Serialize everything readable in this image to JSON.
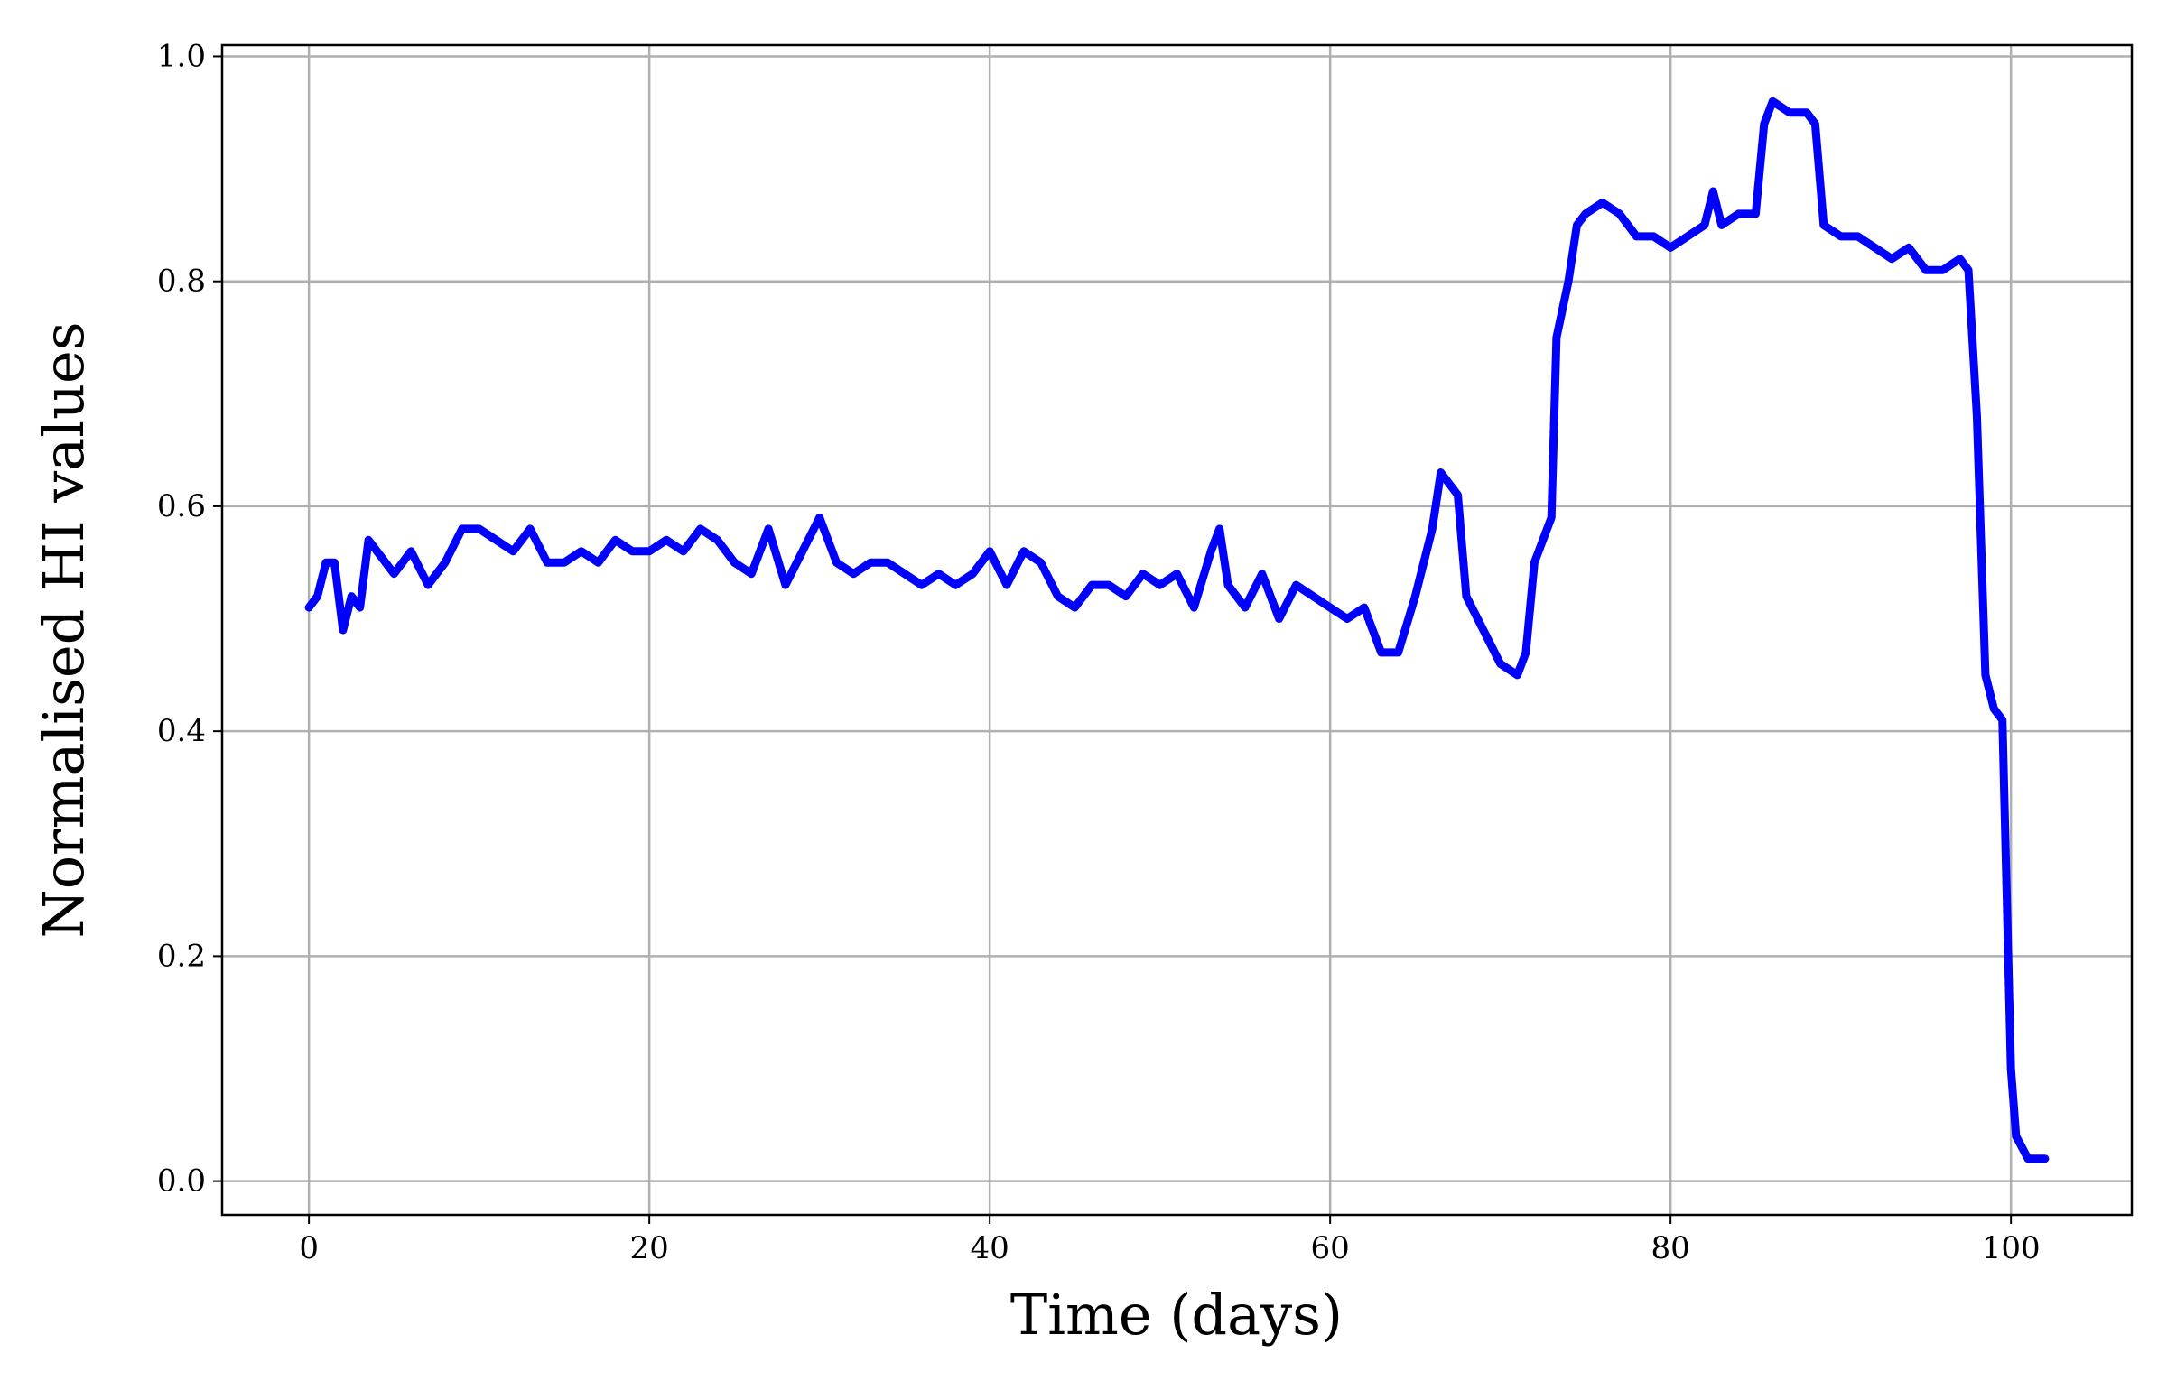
{
  "chart_data": {
    "type": "line",
    "x_label": "Time (days)",
    "y_label": "Normalised HI values",
    "xlim": [
      -5.1,
      107.1
    ],
    "ylim": [
      -0.03,
      1.01
    ],
    "xticks": [
      0,
      20,
      40,
      60,
      80,
      100
    ],
    "yticks": [
      {
        "value": 0,
        "label": "0.0"
      },
      0.2,
      0.4,
      0.6,
      0.8,
      {
        "value": 1,
        "label": "1.0"
      }
    ],
    "grid": true,
    "series": [
      {
        "color": "#0000ff",
        "x": [
          0,
          0.5,
          1,
          1.5,
          2,
          2.5,
          3,
          3.5,
          4,
          5,
          6,
          7,
          8,
          9,
          10,
          11,
          12,
          13,
          14,
          15,
          16,
          17,
          18,
          19,
          20,
          21,
          22,
          23,
          24,
          25,
          26,
          27,
          28,
          29,
          30,
          31,
          32,
          33,
          34,
          35,
          36,
          37,
          38,
          39,
          40,
          41,
          42,
          43,
          44,
          45,
          46,
          47,
          48,
          49,
          50,
          51,
          52,
          53,
          53.5,
          54,
          55,
          56,
          57,
          58,
          59,
          60,
          61,
          62,
          63,
          64,
          65,
          66,
          66.5,
          67.5,
          68,
          69,
          70,
          71,
          71.5,
          72,
          72.5,
          73,
          73.3,
          74,
          74.5,
          75,
          76,
          77,
          78,
          79,
          80,
          81,
          82,
          82.5,
          83,
          84,
          85,
          85.5,
          86,
          87,
          88,
          88.5,
          89,
          90,
          91,
          92,
          93,
          94,
          95,
          96,
          97,
          97.5,
          98,
          98.5,
          99,
          99.5,
          100,
          100.3,
          101,
          102
        ],
        "values": [
          0.51,
          0.52,
          0.55,
          0.55,
          0.49,
          0.52,
          0.51,
          0.57,
          0.56,
          0.54,
          0.56,
          0.53,
          0.55,
          0.58,
          0.58,
          0.57,
          0.56,
          0.58,
          0.55,
          0.55,
          0.56,
          0.55,
          0.57,
          0.56,
          0.56,
          0.57,
          0.56,
          0.58,
          0.57,
          0.55,
          0.54,
          0.58,
          0.53,
          0.56,
          0.59,
          0.55,
          0.54,
          0.55,
          0.55,
          0.54,
          0.53,
          0.54,
          0.53,
          0.54,
          0.56,
          0.53,
          0.56,
          0.55,
          0.52,
          0.51,
          0.53,
          0.53,
          0.52,
          0.54,
          0.53,
          0.54,
          0.51,
          0.56,
          0.58,
          0.53,
          0.51,
          0.54,
          0.5,
          0.53,
          0.52,
          0.51,
          0.5,
          0.51,
          0.47,
          0.47,
          0.52,
          0.58,
          0.63,
          0.61,
          0.52,
          0.49,
          0.46,
          0.45,
          0.47,
          0.55,
          0.57,
          0.59,
          0.75,
          0.8,
          0.85,
          0.86,
          0.87,
          0.86,
          0.84,
          0.84,
          0.83,
          0.84,
          0.85,
          0.88,
          0.85,
          0.86,
          0.86,
          0.94,
          0.96,
          0.95,
          0.95,
          0.94,
          0.85,
          0.84,
          0.84,
          0.83,
          0.82,
          0.83,
          0.81,
          0.81,
          0.82,
          0.81,
          0.68,
          0.45,
          0.42,
          0.41,
          0.1,
          0.04,
          0.02,
          0.02
        ]
      }
    ]
  }
}
